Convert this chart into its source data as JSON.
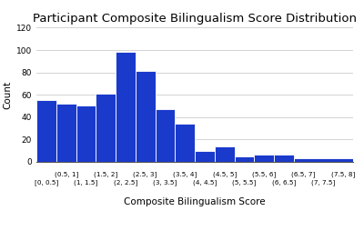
{
  "title": "Participant Composite Bilingualism Score Distribution",
  "xlabel": "Composite Bilingualism Score",
  "ylabel": "Count",
  "bar_color": "#1a3acc",
  "bar_edge_color": "white",
  "bar_heights": [
    55,
    52,
    50,
    61,
    98,
    81,
    47,
    34,
    10,
    14,
    5,
    6,
    6,
    3
  ],
  "bin_edges": [
    0,
    0.5,
    1.0,
    1.5,
    2.0,
    2.5,
    3.0,
    3.5,
    4.0,
    4.5,
    5.0,
    5.5,
    6.0,
    6.5,
    8.0
  ],
  "tick_top_labels": [
    "(0.5, 1]",
    "(1.5, 2]",
    "(2.5, 3]",
    "(3.5, 4]",
    "(4.5, 5]",
    "(5.5, 6]",
    "(6.5, 7]",
    "(7.5, 8]"
  ],
  "tick_bottom_labels": [
    "[0, 0.5]",
    "(1, 1.5]",
    "(2, 2.5]",
    "(3, 3.5]",
    "(4, 4.5]",
    "(5, 5.5]",
    "(6, 6.5]",
    "(7, 7.5]"
  ],
  "tick_positions_top": [
    0.75,
    1.75,
    2.75,
    3.75,
    4.75,
    5.75,
    6.75,
    7.75
  ],
  "tick_positions_bottom": [
    0.25,
    1.25,
    2.25,
    3.25,
    4.25,
    5.25,
    6.25,
    7.25
  ],
  "ylim": [
    0,
    120
  ],
  "yticks": [
    0,
    20,
    40,
    60,
    80,
    100,
    120
  ],
  "background_color": "#ffffff",
  "title_fontsize": 9.5,
  "axis_label_fontsize": 7.5,
  "tick_fontsize": 5.2,
  "ytick_fontsize": 6.5
}
